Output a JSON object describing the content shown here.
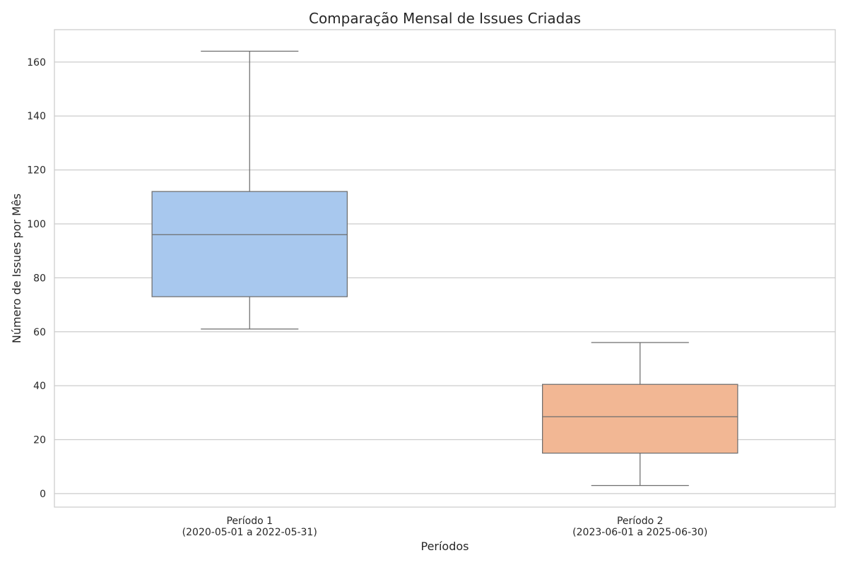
{
  "chart_data": {
    "type": "box",
    "title": "Comparação Mensal de Issues Criadas",
    "xlabel": "Períodos",
    "ylabel": "Número de Issues por Mês",
    "ylim": [
      -5,
      172
    ],
    "yticks": [
      0,
      20,
      40,
      60,
      80,
      100,
      120,
      140,
      160
    ],
    "grid": true,
    "categories": [
      {
        "line1": "Período 1",
        "line2": "(2020-05-01 a 2022-05-31)"
      },
      {
        "line1": "Período 2",
        "line2": "(2023-06-01 a 2025-06-30)"
      }
    ],
    "boxes": [
      {
        "min": 61,
        "q1": 73,
        "median": 96,
        "q3": 112,
        "max": 164,
        "color": "#a8c8ee"
      },
      {
        "min": 3,
        "q1": 15,
        "median": 28.5,
        "q3": 40.5,
        "max": 56,
        "color": "#f2b794"
      }
    ],
    "colors": {
      "box_line": "#6e6e6e",
      "grid": "#cccccc",
      "frame": "#cccccc"
    }
  }
}
